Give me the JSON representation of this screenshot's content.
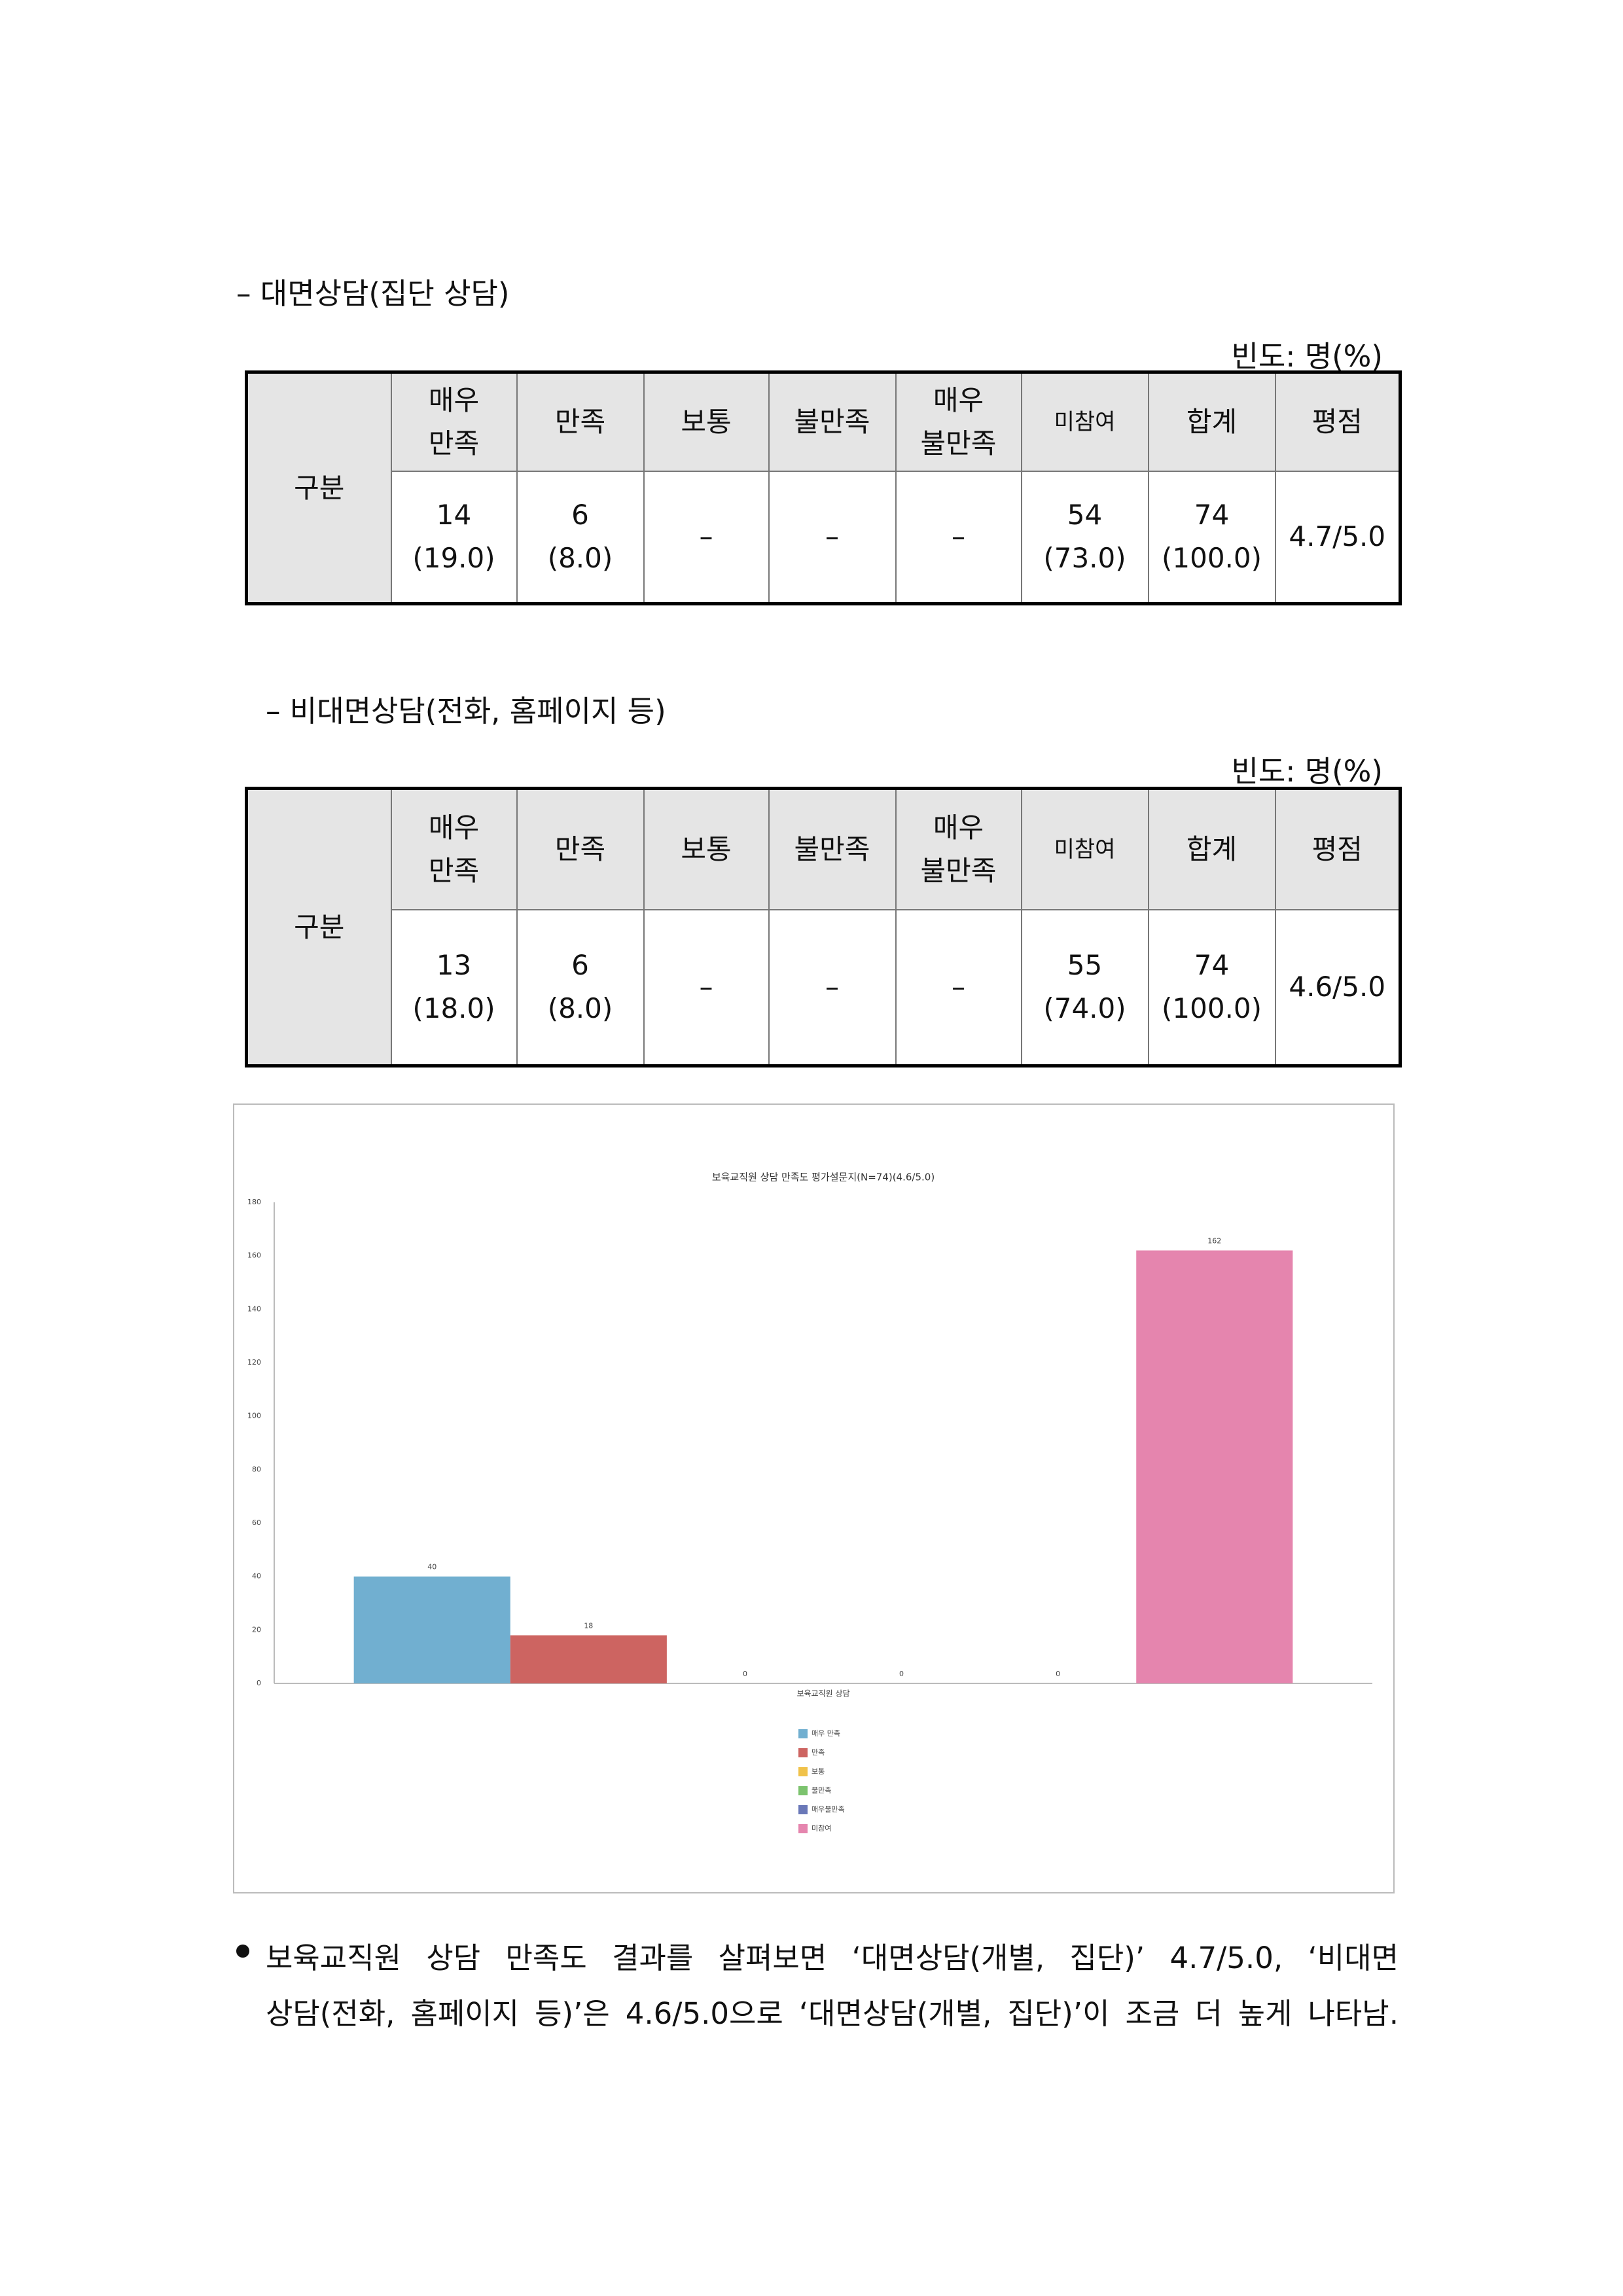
{
  "tables": [
    {
      "heading": "– 대면상담(집단 상담)",
      "unit": "빈도: 명(%)",
      "row_header": "구분",
      "columns": [
        [
          "매우",
          "만족"
        ],
        [
          "만족"
        ],
        [
          "보통"
        ],
        [
          "불만족"
        ],
        [
          "매우",
          "불만족"
        ],
        [
          "미참여"
        ],
        [
          "합계"
        ],
        [
          "평점"
        ]
      ],
      "cells": [
        [
          "14",
          "(19.0)"
        ],
        [
          "6",
          "(8.0)"
        ],
        [
          "–"
        ],
        [
          "–"
        ],
        [
          "–"
        ],
        [
          "54",
          "(73.0)"
        ],
        [
          "74",
          "(100.0)"
        ],
        [
          "4.7/5.0"
        ]
      ]
    },
    {
      "heading": "– 비대면상담(전화, 홈페이지 등)",
      "unit": "빈도: 명(%)",
      "row_header": "구분",
      "columns": [
        [
          "매우",
          "만족"
        ],
        [
          "만족"
        ],
        [
          "보통"
        ],
        [
          "불만족"
        ],
        [
          "매우",
          "불만족"
        ],
        [
          "미참여"
        ],
        [
          "합계"
        ],
        [
          "평점"
        ]
      ],
      "cells": [
        [
          "13",
          "(18.0)"
        ],
        [
          "6",
          "(8.0)"
        ],
        [
          "–"
        ],
        [
          "–"
        ],
        [
          "–"
        ],
        [
          "55",
          "(74.0)"
        ],
        [
          "74",
          "(100.0)"
        ],
        [
          "4.6/5.0"
        ]
      ]
    }
  ],
  "chart_data": {
    "type": "bar",
    "title": "보육교직원 상담 만족도 평가설문지(N=74)(4.6/5.0)",
    "categories": [
      "보육교직원 상담"
    ],
    "series": [
      {
        "name": "매우 만족",
        "color": "#71afd0",
        "values": [
          40
        ]
      },
      {
        "name": "만족",
        "color": "#cd6461",
        "values": [
          18
        ]
      },
      {
        "name": "보통",
        "color": "#f0c24a",
        "values": [
          0
        ]
      },
      {
        "name": "불만족",
        "color": "#7cc36e",
        "values": [
          0
        ]
      },
      {
        "name": "매우불만족",
        "color": "#6a78b8",
        "values": [
          0
        ]
      },
      {
        "name": "미참여",
        "color": "#e585ae",
        "values": [
          162
        ]
      }
    ],
    "ylim": [
      0,
      180
    ],
    "yticks": [
      0,
      20,
      40,
      60,
      80,
      100,
      120,
      140,
      160,
      180
    ],
    "grid": false,
    "legend": "bottom"
  },
  "paragraph": [
    "보육교직원 상담 만족도 결과를 살펴보면 ‘대면상담(개별, 집단)’ 4.7/5.0, ‘비대면",
    "상담(전화, 홈페이지 등)’은 4.6/5.0으로 ‘대면상담(개별, 집단)’이 조금 더 높게 나타남."
  ]
}
